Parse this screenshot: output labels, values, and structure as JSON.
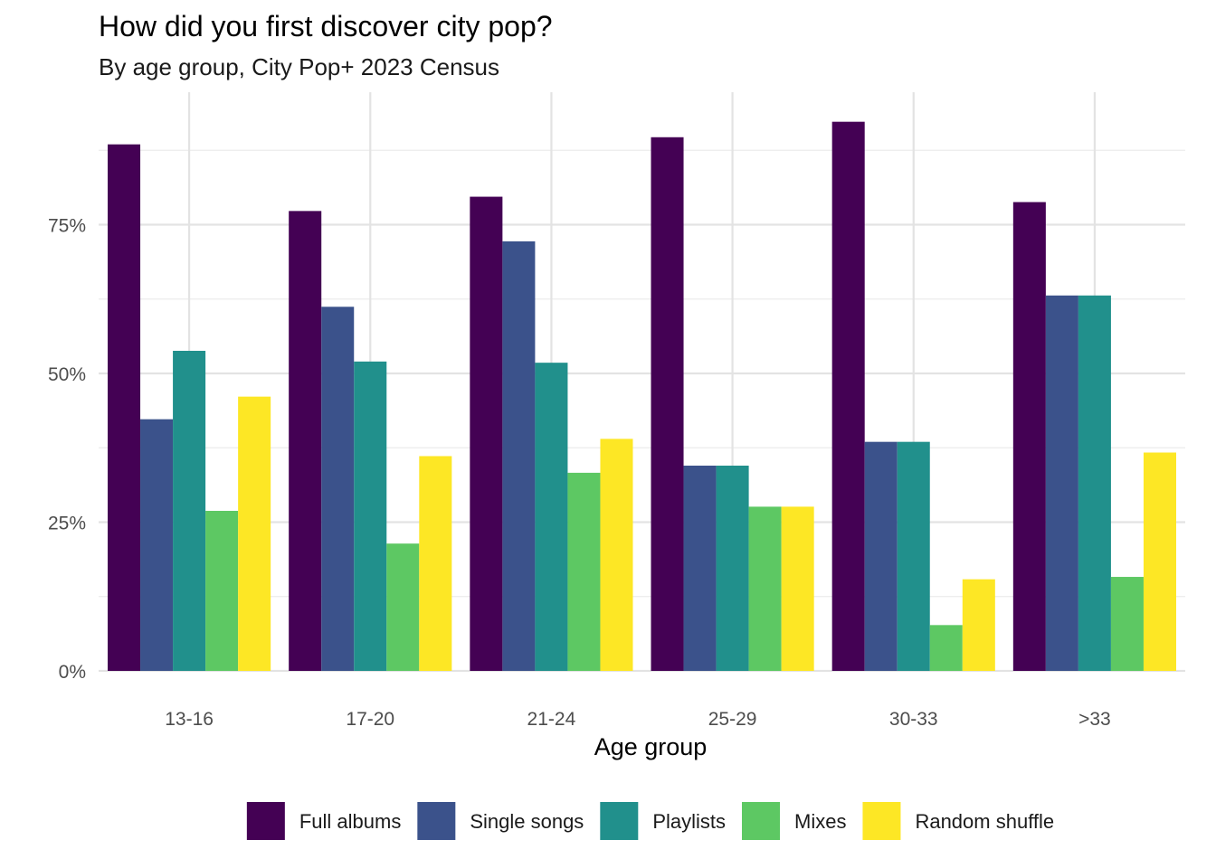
{
  "chart_data": {
    "type": "bar",
    "title": "How did you first discover city pop?",
    "subtitle": "By age group, City Pop+ 2023 Census",
    "xlabel": "Age group",
    "ylabel": "",
    "categories": [
      "13-16",
      "17-20",
      "21-24",
      "25-29",
      "30-33",
      ">33"
    ],
    "ylim": [
      0,
      0.95
    ],
    "yticks": [
      0,
      0.25,
      0.5,
      0.75
    ],
    "ytick_labels": [
      "0%",
      "25%",
      "50%",
      "75%"
    ],
    "grid": true,
    "legend_position": "bottom",
    "series": [
      {
        "name": "Full albums",
        "color": "#440154",
        "values": [
          0.885,
          0.773,
          0.797,
          0.897,
          0.923,
          0.788
        ]
      },
      {
        "name": "Single songs",
        "color": "#3B528B",
        "values": [
          0.423,
          0.612,
          0.722,
          0.345,
          0.385,
          0.631
        ]
      },
      {
        "name": "Playlists",
        "color": "#21908C",
        "values": [
          0.538,
          0.52,
          0.518,
          0.345,
          0.385,
          0.631
        ]
      },
      {
        "name": "Mixes",
        "color": "#5DC863",
        "values": [
          0.269,
          0.214,
          0.333,
          0.276,
          0.077,
          0.158
        ]
      },
      {
        "name": "Random shuffle",
        "color": "#FDE725",
        "values": [
          0.461,
          0.361,
          0.39,
          0.276,
          0.154,
          0.367
        ]
      }
    ]
  }
}
